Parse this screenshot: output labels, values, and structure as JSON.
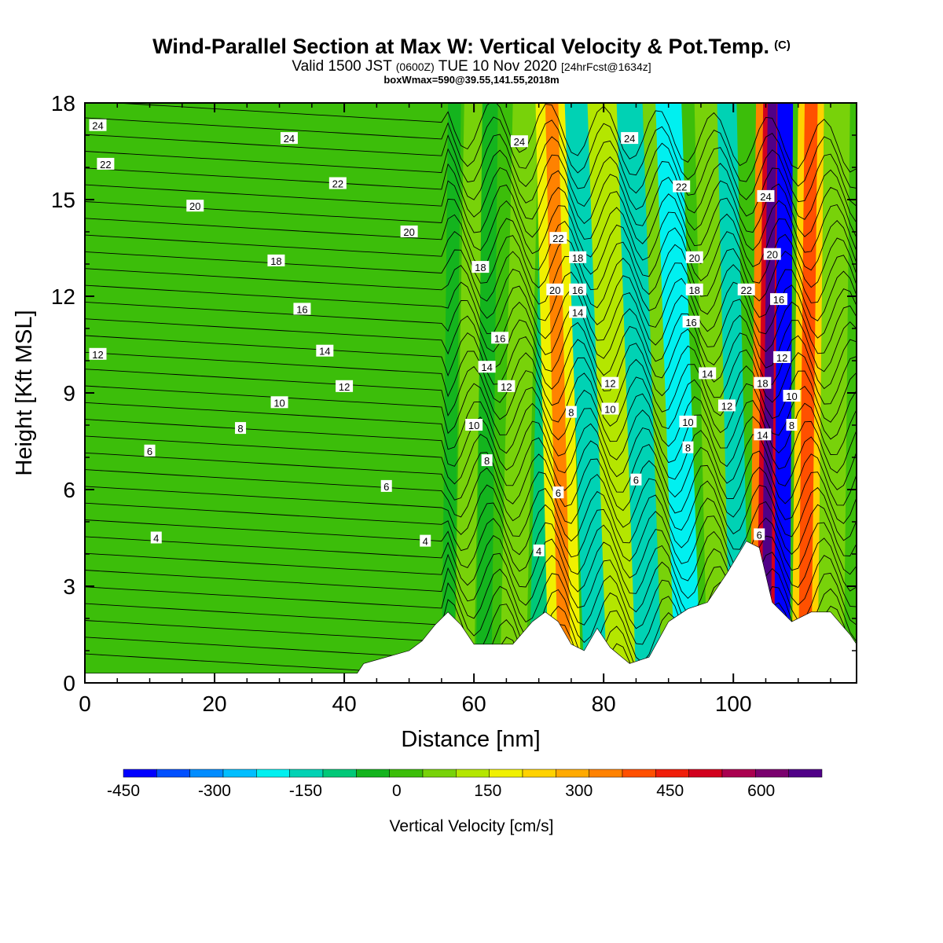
{
  "header": {
    "title": "Wind-Parallel Section at Max W: Vertical Velocity & Pot.Temp.",
    "copyright": "(C)",
    "valid_a": "Valid 1500 JST",
    "valid_b": "(0600Z)",
    "valid_c": "TUE 10 Nov 2020",
    "valid_d": "[24hrFcst@1634z]",
    "box": "boxWmax=590@39.55,141.55,2018m"
  },
  "chart_data": {
    "type": "heatmap",
    "xlabel": "Distance [nm]",
    "ylabel": "Height [Kft MSL]",
    "xlim": [
      0,
      119
    ],
    "ylim": [
      0,
      18
    ],
    "x_ticks": [
      0,
      20,
      40,
      60,
      80,
      100
    ],
    "y_ticks": [
      0,
      3,
      6,
      9,
      12,
      15,
      18
    ],
    "colorbar": {
      "label": "Vertical Velocity [cm/s]",
      "ticks": [
        -450,
        -300,
        -150,
        0,
        150,
        300,
        450,
        600
      ],
      "range": [
        -450,
        700
      ],
      "colors": [
        "#0000ff",
        "#0050ff",
        "#008cff",
        "#00beff",
        "#00f0f0",
        "#00d2b4",
        "#00c878",
        "#14b41e",
        "#3cbe0a",
        "#78d20a",
        "#b4e600",
        "#f0f000",
        "#ffd200",
        "#ffaa00",
        "#ff8200",
        "#ff5000",
        "#f01e0a",
        "#d2001e",
        "#aa0050",
        "#7a006e",
        "#500087"
      ]
    },
    "theta_contour_labels": [
      {
        "text": "24",
        "x": 2,
        "y": 17.3
      },
      {
        "text": "22",
        "x": 3.2,
        "y": 16.1
      },
      {
        "text": "24",
        "x": 31.5,
        "y": 16.9
      },
      {
        "text": "22",
        "x": 39,
        "y": 15.5
      },
      {
        "text": "20",
        "x": 17,
        "y": 14.8
      },
      {
        "text": "20",
        "x": 50,
        "y": 14.0
      },
      {
        "text": "18",
        "x": 29.5,
        "y": 13.1
      },
      {
        "text": "16",
        "x": 33.5,
        "y": 11.6
      },
      {
        "text": "14",
        "x": 37,
        "y": 10.3
      },
      {
        "text": "12",
        "x": 2,
        "y": 10.2
      },
      {
        "text": "12",
        "x": 40,
        "y": 9.2
      },
      {
        "text": "10",
        "x": 30,
        "y": 8.7
      },
      {
        "text": "8",
        "x": 24,
        "y": 7.9
      },
      {
        "text": "6",
        "x": 10,
        "y": 7.2
      },
      {
        "text": "6",
        "x": 46.5,
        "y": 6.1
      },
      {
        "text": "4",
        "x": 11,
        "y": 4.5
      },
      {
        "text": "4",
        "x": 52.5,
        "y": 4.4
      },
      {
        "text": "24",
        "x": 67,
        "y": 16.8
      },
      {
        "text": "24",
        "x": 84,
        "y": 16.9
      },
      {
        "text": "22",
        "x": 73,
        "y": 13.8
      },
      {
        "text": "22",
        "x": 92,
        "y": 15.4
      },
      {
        "text": "24",
        "x": 105,
        "y": 15.1
      },
      {
        "text": "18",
        "x": 61,
        "y": 12.9
      },
      {
        "text": "18",
        "x": 76,
        "y": 13.2
      },
      {
        "text": "20",
        "x": 72.5,
        "y": 12.2
      },
      {
        "text": "16",
        "x": 76,
        "y": 12.2
      },
      {
        "text": "14",
        "x": 76,
        "y": 11.5
      },
      {
        "text": "20",
        "x": 94,
        "y": 13.2
      },
      {
        "text": "20",
        "x": 106,
        "y": 13.3
      },
      {
        "text": "18",
        "x": 94,
        "y": 12.2
      },
      {
        "text": "22",
        "x": 102,
        "y": 12.2
      },
      {
        "text": "16",
        "x": 107,
        "y": 11.9
      },
      {
        "text": "16",
        "x": 93.5,
        "y": 11.2
      },
      {
        "text": "16",
        "x": 64,
        "y": 10.7
      },
      {
        "text": "14",
        "x": 62,
        "y": 9.8
      },
      {
        "text": "12",
        "x": 65,
        "y": 9.2
      },
      {
        "text": "12",
        "x": 81,
        "y": 9.3
      },
      {
        "text": "14",
        "x": 96,
        "y": 9.6
      },
      {
        "text": "12",
        "x": 107.5,
        "y": 10.1
      },
      {
        "text": "18",
        "x": 104.5,
        "y": 9.3
      },
      {
        "text": "10",
        "x": 81,
        "y": 8.5
      },
      {
        "text": "8",
        "x": 75,
        "y": 8.4
      },
      {
        "text": "12",
        "x": 99,
        "y": 8.6
      },
      {
        "text": "10",
        "x": 109,
        "y": 8.9
      },
      {
        "text": "10",
        "x": 60,
        "y": 8.0
      },
      {
        "text": "10",
        "x": 93,
        "y": 8.1
      },
      {
        "text": "8",
        "x": 109,
        "y": 8.0
      },
      {
        "text": "14",
        "x": 104.5,
        "y": 7.7
      },
      {
        "text": "8",
        "x": 62,
        "y": 6.9
      },
      {
        "text": "8",
        "x": 93,
        "y": 7.3
      },
      {
        "text": "6",
        "x": 85,
        "y": 6.3
      },
      {
        "text": "6",
        "x": 73,
        "y": 5.9
      },
      {
        "text": "4",
        "x": 70,
        "y": 4.1
      },
      {
        "text": "6",
        "x": 104,
        "y": 4.6
      }
    ]
  }
}
